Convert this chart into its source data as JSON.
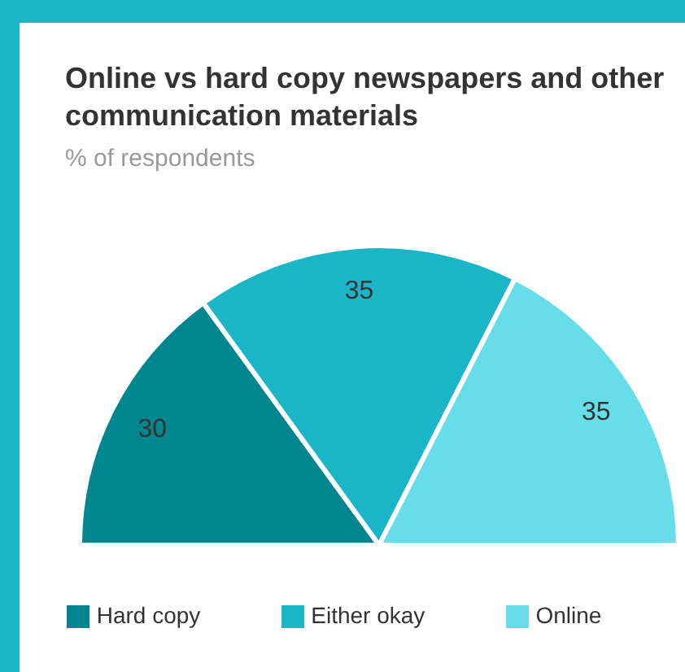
{
  "chart_data": {
    "type": "pie",
    "title": "Online vs hard copy newspapers and other communication materials",
    "subtitle": "% of respondents",
    "categories": [
      "Hard copy",
      "Either okay",
      "Online"
    ],
    "values": [
      30,
      35,
      35
    ],
    "colors": [
      "#00868f",
      "#1bb5c8",
      "#66dde9"
    ],
    "data_labels": true,
    "legend": "bottom"
  }
}
